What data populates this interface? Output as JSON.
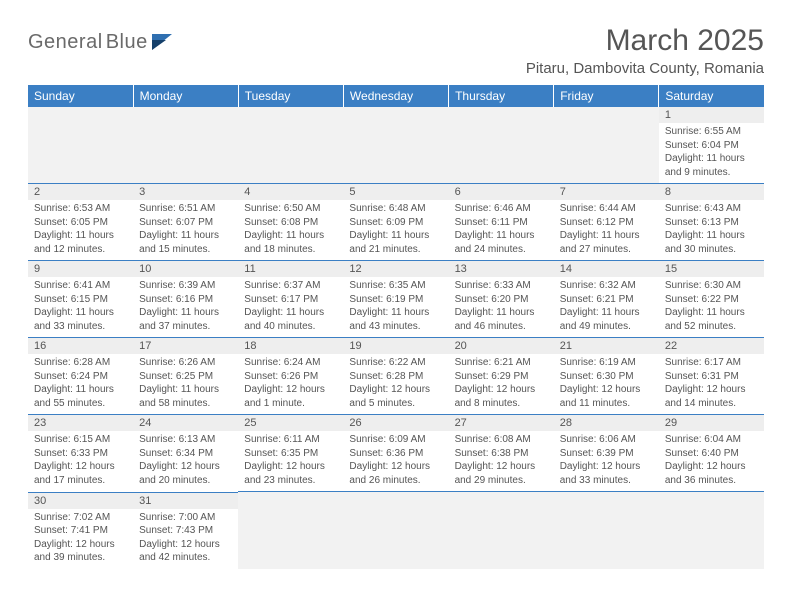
{
  "logo": {
    "name": "General",
    "sub": "Blue"
  },
  "title": "March 2025",
  "location": "Pitaru, Dambovita County, Romania",
  "headers": [
    "Sunday",
    "Monday",
    "Tuesday",
    "Wednesday",
    "Thursday",
    "Friday",
    "Saturday"
  ],
  "colors": {
    "header_bg": "#3b7fc4",
    "header_fg": "#ffffff",
    "daynum_bg": "#eeeeee",
    "text": "#555555",
    "rule": "#3b7fc4",
    "empty_bg": "#f2f2f2"
  },
  "weeks": [
    [
      null,
      null,
      null,
      null,
      null,
      null,
      {
        "n": "1",
        "sr": "Sunrise: 6:55 AM",
        "ss": "Sunset: 6:04 PM",
        "dl": "Daylight: 11 hours and 9 minutes."
      }
    ],
    [
      {
        "n": "2",
        "sr": "Sunrise: 6:53 AM",
        "ss": "Sunset: 6:05 PM",
        "dl": "Daylight: 11 hours and 12 minutes."
      },
      {
        "n": "3",
        "sr": "Sunrise: 6:51 AM",
        "ss": "Sunset: 6:07 PM",
        "dl": "Daylight: 11 hours and 15 minutes."
      },
      {
        "n": "4",
        "sr": "Sunrise: 6:50 AM",
        "ss": "Sunset: 6:08 PM",
        "dl": "Daylight: 11 hours and 18 minutes."
      },
      {
        "n": "5",
        "sr": "Sunrise: 6:48 AM",
        "ss": "Sunset: 6:09 PM",
        "dl": "Daylight: 11 hours and 21 minutes."
      },
      {
        "n": "6",
        "sr": "Sunrise: 6:46 AM",
        "ss": "Sunset: 6:11 PM",
        "dl": "Daylight: 11 hours and 24 minutes."
      },
      {
        "n": "7",
        "sr": "Sunrise: 6:44 AM",
        "ss": "Sunset: 6:12 PM",
        "dl": "Daylight: 11 hours and 27 minutes."
      },
      {
        "n": "8",
        "sr": "Sunrise: 6:43 AM",
        "ss": "Sunset: 6:13 PM",
        "dl": "Daylight: 11 hours and 30 minutes."
      }
    ],
    [
      {
        "n": "9",
        "sr": "Sunrise: 6:41 AM",
        "ss": "Sunset: 6:15 PM",
        "dl": "Daylight: 11 hours and 33 minutes."
      },
      {
        "n": "10",
        "sr": "Sunrise: 6:39 AM",
        "ss": "Sunset: 6:16 PM",
        "dl": "Daylight: 11 hours and 37 minutes."
      },
      {
        "n": "11",
        "sr": "Sunrise: 6:37 AM",
        "ss": "Sunset: 6:17 PM",
        "dl": "Daylight: 11 hours and 40 minutes."
      },
      {
        "n": "12",
        "sr": "Sunrise: 6:35 AM",
        "ss": "Sunset: 6:19 PM",
        "dl": "Daylight: 11 hours and 43 minutes."
      },
      {
        "n": "13",
        "sr": "Sunrise: 6:33 AM",
        "ss": "Sunset: 6:20 PM",
        "dl": "Daylight: 11 hours and 46 minutes."
      },
      {
        "n": "14",
        "sr": "Sunrise: 6:32 AM",
        "ss": "Sunset: 6:21 PM",
        "dl": "Daylight: 11 hours and 49 minutes."
      },
      {
        "n": "15",
        "sr": "Sunrise: 6:30 AM",
        "ss": "Sunset: 6:22 PM",
        "dl": "Daylight: 11 hours and 52 minutes."
      }
    ],
    [
      {
        "n": "16",
        "sr": "Sunrise: 6:28 AM",
        "ss": "Sunset: 6:24 PM",
        "dl": "Daylight: 11 hours and 55 minutes."
      },
      {
        "n": "17",
        "sr": "Sunrise: 6:26 AM",
        "ss": "Sunset: 6:25 PM",
        "dl": "Daylight: 11 hours and 58 minutes."
      },
      {
        "n": "18",
        "sr": "Sunrise: 6:24 AM",
        "ss": "Sunset: 6:26 PM",
        "dl": "Daylight: 12 hours and 1 minute."
      },
      {
        "n": "19",
        "sr": "Sunrise: 6:22 AM",
        "ss": "Sunset: 6:28 PM",
        "dl": "Daylight: 12 hours and 5 minutes."
      },
      {
        "n": "20",
        "sr": "Sunrise: 6:21 AM",
        "ss": "Sunset: 6:29 PM",
        "dl": "Daylight: 12 hours and 8 minutes."
      },
      {
        "n": "21",
        "sr": "Sunrise: 6:19 AM",
        "ss": "Sunset: 6:30 PM",
        "dl": "Daylight: 12 hours and 11 minutes."
      },
      {
        "n": "22",
        "sr": "Sunrise: 6:17 AM",
        "ss": "Sunset: 6:31 PM",
        "dl": "Daylight: 12 hours and 14 minutes."
      }
    ],
    [
      {
        "n": "23",
        "sr": "Sunrise: 6:15 AM",
        "ss": "Sunset: 6:33 PM",
        "dl": "Daylight: 12 hours and 17 minutes."
      },
      {
        "n": "24",
        "sr": "Sunrise: 6:13 AM",
        "ss": "Sunset: 6:34 PM",
        "dl": "Daylight: 12 hours and 20 minutes."
      },
      {
        "n": "25",
        "sr": "Sunrise: 6:11 AM",
        "ss": "Sunset: 6:35 PM",
        "dl": "Daylight: 12 hours and 23 minutes."
      },
      {
        "n": "26",
        "sr": "Sunrise: 6:09 AM",
        "ss": "Sunset: 6:36 PM",
        "dl": "Daylight: 12 hours and 26 minutes."
      },
      {
        "n": "27",
        "sr": "Sunrise: 6:08 AM",
        "ss": "Sunset: 6:38 PM",
        "dl": "Daylight: 12 hours and 29 minutes."
      },
      {
        "n": "28",
        "sr": "Sunrise: 6:06 AM",
        "ss": "Sunset: 6:39 PM",
        "dl": "Daylight: 12 hours and 33 minutes."
      },
      {
        "n": "29",
        "sr": "Sunrise: 6:04 AM",
        "ss": "Sunset: 6:40 PM",
        "dl": "Daylight: 12 hours and 36 minutes."
      }
    ],
    [
      {
        "n": "30",
        "sr": "Sunrise: 7:02 AM",
        "ss": "Sunset: 7:41 PM",
        "dl": "Daylight: 12 hours and 39 minutes."
      },
      {
        "n": "31",
        "sr": "Sunrise: 7:00 AM",
        "ss": "Sunset: 7:43 PM",
        "dl": "Daylight: 12 hours and 42 minutes."
      },
      null,
      null,
      null,
      null,
      null
    ]
  ]
}
